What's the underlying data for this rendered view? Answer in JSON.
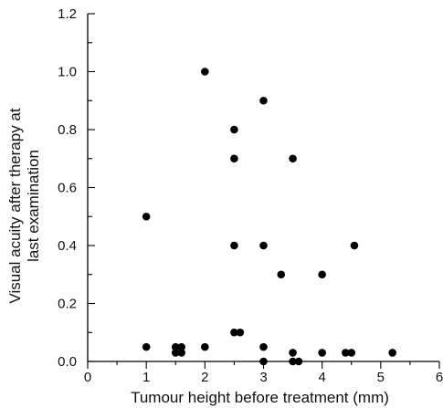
{
  "chart_data": {
    "type": "scatter",
    "xlabel": "Tumour height before treatment (mm)",
    "ylabel_lines": [
      "Visual acuity after therapy at",
      "last examination"
    ],
    "xlim": [
      0,
      6
    ],
    "ylim": [
      0,
      1.2
    ],
    "x_ticks": [
      0,
      1,
      2,
      3,
      4,
      5,
      6
    ],
    "x_tick_labels": [
      "0",
      "1",
      "2",
      "3",
      "4",
      "5",
      "6"
    ],
    "y_ticks": [
      0.0,
      0.2,
      0.4,
      0.6,
      0.8,
      1.0,
      1.2
    ],
    "y_tick_labels": [
      "0.0",
      "0.2",
      "0.4",
      "0.6",
      "0.8",
      "1.0",
      "1.2"
    ],
    "grid": false,
    "series": [
      {
        "points": [
          {
            "x": 1.0,
            "y": 0.5
          },
          {
            "x": 1.0,
            "y": 0.05
          },
          {
            "x": 1.5,
            "y": 0.05
          },
          {
            "x": 1.5,
            "y": 0.03
          },
          {
            "x": 1.6,
            "y": 0.05
          },
          {
            "x": 1.6,
            "y": 0.03
          },
          {
            "x": 2.0,
            "y": 1.0
          },
          {
            "x": 2.0,
            "y": 0.05
          },
          {
            "x": 2.5,
            "y": 0.8
          },
          {
            "x": 2.5,
            "y": 0.7
          },
          {
            "x": 2.5,
            "y": 0.4
          },
          {
            "x": 2.5,
            "y": 0.1
          },
          {
            "x": 2.6,
            "y": 0.1
          },
          {
            "x": 3.0,
            "y": 0.9
          },
          {
            "x": 3.0,
            "y": 0.4
          },
          {
            "x": 3.0,
            "y": 0.05
          },
          {
            "x": 3.0,
            "y": 0.0
          },
          {
            "x": 3.3,
            "y": 0.3
          },
          {
            "x": 3.5,
            "y": 0.7
          },
          {
            "x": 3.5,
            "y": 0.03
          },
          {
            "x": 3.5,
            "y": 0.0
          },
          {
            "x": 3.6,
            "y": 0.0
          },
          {
            "x": 4.0,
            "y": 0.3
          },
          {
            "x": 4.0,
            "y": 0.03
          },
          {
            "x": 4.4,
            "y": 0.03
          },
          {
            "x": 4.5,
            "y": 0.03
          },
          {
            "x": 4.55,
            "y": 0.4
          },
          {
            "x": 5.2,
            "y": 0.03
          }
        ]
      }
    ]
  }
}
